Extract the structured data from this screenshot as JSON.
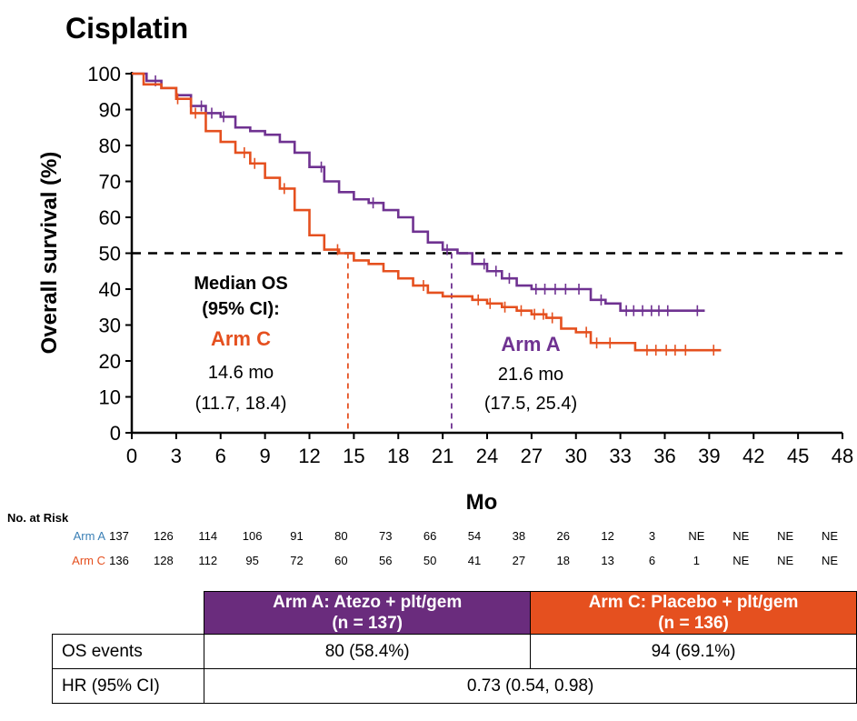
{
  "chart_data": {
    "type": "line",
    "title": "Cisplatin",
    "xlabel": "Mo",
    "ylabel": "Overall survival (%)",
    "xlim": [
      0,
      48
    ],
    "ylim": [
      0,
      100
    ],
    "x_ticks": [
      0,
      3,
      6,
      9,
      12,
      15,
      18,
      21,
      24,
      27,
      30,
      33,
      36,
      39,
      42,
      45,
      48
    ],
    "y_ticks": [
      0,
      10,
      20,
      30,
      40,
      50,
      60,
      70,
      80,
      90,
      100
    ],
    "reference_line": {
      "y": 50,
      "style": "dashed"
    },
    "series": [
      {
        "name": "Arm A",
        "color": "#6f3291",
        "median_label": "21.6 mo",
        "median_ci": "(17.5, 25.4)",
        "median_x": 21.6,
        "points": [
          [
            0,
            100
          ],
          [
            1,
            98
          ],
          [
            2,
            96
          ],
          [
            3,
            94
          ],
          [
            4,
            91
          ],
          [
            5,
            89
          ],
          [
            6,
            88
          ],
          [
            7,
            85
          ],
          [
            8,
            84
          ],
          [
            9,
            83
          ],
          [
            10,
            81
          ],
          [
            11,
            78
          ],
          [
            12,
            74
          ],
          [
            13,
            70
          ],
          [
            14,
            67
          ],
          [
            15,
            65
          ],
          [
            16,
            64
          ],
          [
            17,
            62
          ],
          [
            18,
            60
          ],
          [
            19,
            56
          ],
          [
            20,
            53
          ],
          [
            21,
            51
          ],
          [
            22,
            50
          ],
          [
            23,
            47
          ],
          [
            24,
            45
          ],
          [
            25,
            43
          ],
          [
            26,
            41
          ],
          [
            27,
            40
          ],
          [
            28,
            40
          ],
          [
            29,
            40
          ],
          [
            30,
            40
          ],
          [
            31,
            37
          ],
          [
            32,
            36
          ],
          [
            33,
            34
          ],
          [
            38.7,
            34
          ]
        ],
        "censor_x": [
          1.6,
          4.7,
          5.4,
          6.2,
          12.8,
          16.3,
          21.3,
          23.8,
          24.6,
          25.5,
          27.3,
          27.9,
          28.6,
          29.3,
          30.2,
          31.7,
          33.4,
          33.9,
          34.5,
          35.1,
          35.6,
          36.2,
          38.2
        ]
      },
      {
        "name": "Arm C",
        "color": "#e5501f",
        "median_label": "14.6 mo",
        "median_ci": "(11.7, 18.4)",
        "median_x": 14.6,
        "points": [
          [
            0,
            100
          ],
          [
            0.8,
            97
          ],
          [
            2,
            96
          ],
          [
            3,
            93
          ],
          [
            4,
            89
          ],
          [
            5,
            84
          ],
          [
            6,
            81
          ],
          [
            7,
            78
          ],
          [
            8,
            75
          ],
          [
            9,
            71
          ],
          [
            10,
            68
          ],
          [
            11,
            62
          ],
          [
            12,
            55
          ],
          [
            13,
            51
          ],
          [
            14,
            50
          ],
          [
            15,
            48
          ],
          [
            16,
            47
          ],
          [
            17,
            45
          ],
          [
            18,
            43
          ],
          [
            19,
            41
          ],
          [
            20,
            39
          ],
          [
            21,
            38
          ],
          [
            22,
            38
          ],
          [
            23,
            37
          ],
          [
            24,
            36
          ],
          [
            25,
            35
          ],
          [
            26,
            34
          ],
          [
            27,
            33
          ],
          [
            28,
            32
          ],
          [
            29,
            29
          ],
          [
            30,
            28
          ],
          [
            31,
            25
          ],
          [
            33,
            25
          ],
          [
            34,
            23
          ],
          [
            39.8,
            23
          ]
        ],
        "censor_x": [
          3.1,
          4.3,
          7.6,
          8.3,
          10.3,
          13.9,
          19.7,
          23.4,
          24.2,
          25.2,
          26.3,
          27.2,
          27.8,
          28.4,
          30.7,
          31.4,
          32.3,
          34.8,
          35.4,
          36.1,
          36.7,
          37.4,
          39.3
        ]
      }
    ],
    "annotation": {
      "median_title": "Median OS",
      "ci_title": "(95% CI):"
    }
  },
  "risk_table": {
    "title": "No. at Risk",
    "rows": [
      {
        "label": "Arm A",
        "color": "#3a7fb5",
        "values": [
          "137",
          "126",
          "114",
          "106",
          "91",
          "80",
          "73",
          "66",
          "54",
          "38",
          "26",
          "12",
          "3",
          "NE",
          "NE",
          "NE",
          "NE"
        ]
      },
      {
        "label": "Arm C",
        "color": "#e5501f",
        "values": [
          "136",
          "128",
          "112",
          "95",
          "72",
          "60",
          "56",
          "50",
          "41",
          "27",
          "18",
          "13",
          "6",
          "1",
          "NE",
          "NE",
          "NE"
        ]
      }
    ]
  },
  "summary_table": {
    "header_a_line1": "Arm A: Atezo + plt/gem",
    "header_a_line2": "(n = 137)",
    "header_c_line1": "Arm C: Placebo + plt/gem",
    "header_c_line2": "(n = 136)",
    "color_a": "#6a2c7d",
    "color_c": "#e5501f",
    "os_label": "OS events",
    "os_a": "80 (58.4%)",
    "os_c": "94 (69.1%)",
    "hr_label": "HR (95% CI)",
    "hr_value": "0.73 (0.54, 0.98)"
  }
}
